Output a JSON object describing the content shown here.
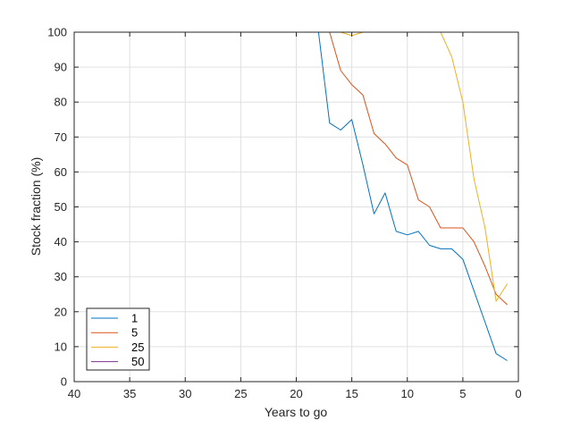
{
  "chart_data": {
    "type": "line",
    "title": "",
    "xlabel": "Years to go",
    "ylabel": "Stock fraction (%)",
    "xlim": [
      40,
      0
    ],
    "ylim": [
      0,
      100
    ],
    "x_reversed": true,
    "xticks": [
      40,
      35,
      30,
      25,
      20,
      15,
      10,
      5,
      0
    ],
    "yticks": [
      0,
      10,
      20,
      30,
      40,
      50,
      60,
      70,
      80,
      90,
      100
    ],
    "grid": true,
    "legend_position": "bottom-left",
    "series": [
      {
        "name": "1",
        "color": "#0072BD",
        "points": [
          [
            40,
            100
          ],
          [
            39,
            100
          ],
          [
            38,
            100
          ],
          [
            37,
            100
          ],
          [
            36,
            100
          ],
          [
            35,
            100
          ],
          [
            34,
            100
          ],
          [
            33,
            100
          ],
          [
            32,
            100
          ],
          [
            31,
            100
          ],
          [
            30,
            100
          ],
          [
            29,
            100
          ],
          [
            28,
            100
          ],
          [
            27,
            100
          ],
          [
            26,
            100
          ],
          [
            25,
            100
          ],
          [
            24,
            100
          ],
          [
            23,
            100
          ],
          [
            22,
            100
          ],
          [
            21,
            100
          ],
          [
            20,
            100
          ],
          [
            19,
            100
          ],
          [
            18,
            100
          ],
          [
            17,
            74
          ],
          [
            16,
            72
          ],
          [
            15,
            75
          ],
          [
            14,
            62
          ],
          [
            13,
            48
          ],
          [
            12,
            54
          ],
          [
            11,
            43
          ],
          [
            10,
            42
          ],
          [
            9,
            43
          ],
          [
            8,
            39
          ],
          [
            7,
            38
          ],
          [
            6,
            38
          ],
          [
            5,
            35
          ],
          [
            4,
            26
          ],
          [
            3,
            17
          ],
          [
            2,
            8
          ],
          [
            1,
            6
          ]
        ]
      },
      {
        "name": "5",
        "color": "#D95319",
        "points": [
          [
            40,
            100
          ],
          [
            39,
            100
          ],
          [
            38,
            100
          ],
          [
            37,
            100
          ],
          [
            36,
            100
          ],
          [
            35,
            100
          ],
          [
            34,
            100
          ],
          [
            33,
            100
          ],
          [
            32,
            100
          ],
          [
            31,
            100
          ],
          [
            30,
            100
          ],
          [
            29,
            100
          ],
          [
            28,
            100
          ],
          [
            27,
            100
          ],
          [
            26,
            100
          ],
          [
            25,
            100
          ],
          [
            24,
            100
          ],
          [
            23,
            100
          ],
          [
            22,
            100
          ],
          [
            21,
            100
          ],
          [
            20,
            100
          ],
          [
            19,
            100
          ],
          [
            18,
            100
          ],
          [
            17,
            100
          ],
          [
            16,
            89
          ],
          [
            15,
            85
          ],
          [
            14,
            82
          ],
          [
            13,
            71
          ],
          [
            12,
            68
          ],
          [
            11,
            64
          ],
          [
            10,
            62
          ],
          [
            9,
            52
          ],
          [
            8,
            50
          ],
          [
            7,
            44
          ],
          [
            6,
            44
          ],
          [
            5,
            44
          ],
          [
            4,
            40
          ],
          [
            3,
            33
          ],
          [
            2,
            25
          ],
          [
            1,
            22
          ]
        ]
      },
      {
        "name": "25",
        "color": "#EDB120",
        "points": [
          [
            40,
            100
          ],
          [
            39,
            100
          ],
          [
            38,
            100
          ],
          [
            37,
            100
          ],
          [
            36,
            100
          ],
          [
            35,
            100
          ],
          [
            34,
            100
          ],
          [
            33,
            100
          ],
          [
            32,
            100
          ],
          [
            31,
            100
          ],
          [
            30,
            100
          ],
          [
            29,
            100
          ],
          [
            28,
            100
          ],
          [
            27,
            100
          ],
          [
            26,
            100
          ],
          [
            25,
            100
          ],
          [
            24,
            100
          ],
          [
            23,
            100
          ],
          [
            22,
            100
          ],
          [
            21,
            100
          ],
          [
            20,
            100
          ],
          [
            19,
            100
          ],
          [
            18,
            100
          ],
          [
            17,
            100
          ],
          [
            16,
            100
          ],
          [
            15,
            99
          ],
          [
            14,
            100
          ],
          [
            13,
            100
          ],
          [
            12,
            100
          ],
          [
            11,
            100
          ],
          [
            10,
            100
          ],
          [
            9,
            100
          ],
          [
            8,
            100
          ],
          [
            7,
            100
          ],
          [
            6,
            93
          ],
          [
            5,
            80
          ],
          [
            4,
            58
          ],
          [
            3,
            44
          ],
          [
            2,
            23
          ],
          [
            1,
            28
          ]
        ]
      },
      {
        "name": "50",
        "color": "#7E2F8E",
        "points": [
          [
            40,
            100
          ],
          [
            39,
            100
          ],
          [
            38,
            100
          ],
          [
            37,
            100
          ],
          [
            36,
            100
          ],
          [
            35,
            100
          ],
          [
            34,
            100
          ],
          [
            33,
            100
          ],
          [
            32,
            100
          ],
          [
            31,
            100
          ],
          [
            30,
            100
          ],
          [
            29,
            100
          ],
          [
            28,
            100
          ],
          [
            27,
            100
          ],
          [
            26,
            100
          ],
          [
            25,
            100
          ],
          [
            24,
            100
          ],
          [
            23,
            100
          ],
          [
            22,
            100
          ],
          [
            21,
            100
          ],
          [
            20,
            100
          ],
          [
            19,
            100
          ],
          [
            18,
            100
          ],
          [
            17,
            100
          ],
          [
            16,
            100
          ],
          [
            15,
            100
          ],
          [
            14,
            100
          ],
          [
            13,
            100
          ],
          [
            12,
            100
          ],
          [
            11,
            100
          ],
          [
            10,
            100
          ],
          [
            9,
            100
          ],
          [
            8,
            100
          ],
          [
            7,
            100
          ],
          [
            6,
            100
          ],
          [
            5,
            100
          ],
          [
            4,
            100
          ],
          [
            3,
            100
          ],
          [
            2,
            100
          ],
          [
            1,
            100
          ]
        ]
      }
    ]
  }
}
